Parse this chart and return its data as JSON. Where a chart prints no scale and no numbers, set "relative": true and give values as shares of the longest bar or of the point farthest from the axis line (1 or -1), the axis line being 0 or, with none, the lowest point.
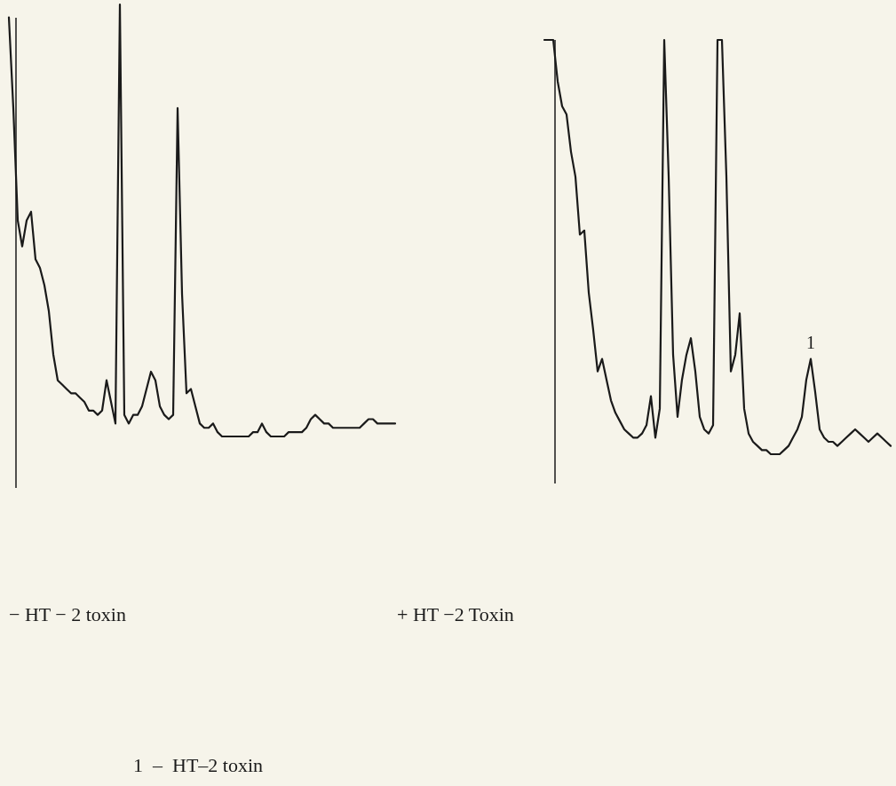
{
  "chart_data": [
    {
      "type": "line",
      "relative": true,
      "title": "− HT − 2 toxin",
      "color": "#1a1a1a",
      "categories": [
        null,
        null,
        null,
        null,
        null,
        null,
        null,
        null,
        null,
        null,
        null,
        null,
        null,
        null,
        null,
        null,
        null,
        null,
        null,
        null,
        null,
        null,
        null,
        null,
        null,
        null,
        null,
        null,
        null,
        null,
        null,
        null,
        null,
        null,
        null,
        null,
        null,
        null,
        null,
        null,
        null,
        null,
        null,
        null,
        null,
        null,
        null,
        null,
        null,
        null,
        null,
        null,
        null,
        null,
        null,
        null,
        null,
        null,
        null,
        null,
        null,
        null,
        null,
        null,
        null,
        null,
        null,
        null,
        null,
        null,
        null,
        null,
        null,
        null,
        null,
        null,
        null,
        null,
        null,
        null,
        null,
        null,
        null,
        null,
        null,
        null,
        null,
        null
      ],
      "values": [
        0.97,
        0.76,
        0.5,
        0.44,
        0.5,
        0.52,
        0.41,
        0.39,
        0.35,
        0.29,
        0.19,
        0.13,
        0.12,
        0.11,
        0.1,
        0.1,
        0.09,
        0.08,
        0.06,
        0.06,
        0.05,
        0.06,
        0.13,
        0.08,
        0.03,
        1.0,
        0.05,
        0.03,
        0.05,
        0.05,
        0.07,
        0.11,
        0.15,
        0.13,
        0.07,
        0.05,
        0.04,
        0.05,
        0.76,
        0.33,
        0.1,
        0.11,
        0.07,
        0.03,
        0.02,
        0.02,
        0.03,
        0.01,
        0.0,
        0,
        0,
        0,
        0,
        0,
        0,
        0.01,
        0.01,
        0.03,
        0.01,
        0,
        0,
        0,
        0,
        0.01,
        0.01,
        0.01,
        0.01,
        0.02,
        0.04,
        0.05,
        0.04,
        0.03,
        0.03,
        0.02,
        0.02,
        0.02,
        0.02,
        0.02,
        0.02,
        0.02,
        0.03,
        0.04,
        0.04,
        0.03,
        0.03,
        0.03,
        0.03,
        0.03
      ]
    },
    {
      "type": "line",
      "relative": true,
      "title": "+ HT −2 Toxin",
      "color": "#1a1a1a",
      "categories": [
        null,
        null,
        null,
        null,
        null,
        null,
        null,
        null,
        null,
        null,
        null,
        null,
        null,
        null,
        null,
        null,
        null,
        null,
        null,
        null,
        null,
        null,
        null,
        null,
        null,
        null,
        null,
        null,
        null,
        null,
        null,
        null,
        null,
        null,
        null,
        null,
        null,
        null,
        null,
        null,
        null,
        null,
        null,
        null,
        null,
        null,
        null,
        null,
        null,
        null,
        null,
        null,
        null,
        null,
        null,
        null,
        null,
        null,
        null,
        null,
        null,
        null,
        null,
        null,
        null,
        null,
        null,
        null,
        null,
        null,
        null,
        null,
        null,
        null,
        null,
        null,
        null,
        null,
        null
      ],
      "values": [
        1.0,
        1.0,
        1.0,
        0.9,
        0.84,
        0.82,
        0.73,
        0.67,
        0.53,
        0.54,
        0.39,
        0.3,
        0.2,
        0.23,
        0.18,
        0.13,
        0.1,
        0.08,
        0.06,
        0.05,
        0.04,
        0.04,
        0.05,
        0.07,
        0.14,
        0.04,
        0.11,
        1.0,
        0.67,
        0.24,
        0.09,
        0.18,
        0.24,
        0.28,
        0.2,
        0.09,
        0.06,
        0.05,
        0.07,
        1.0,
        1.0,
        0.67,
        0.2,
        0.24,
        0.34,
        0.11,
        0.05,
        0.03,
        0.02,
        0.01,
        0.01,
        0,
        0,
        0,
        0.01,
        0.02,
        0.04,
        0.06,
        0.09,
        0.18,
        0.23,
        0.15,
        0.06,
        0.04,
        0.03,
        0.03,
        0.02,
        0.03,
        0.04,
        0.05,
        0.06,
        0.05,
        0.04,
        0.03,
        0.04,
        0.05,
        0.04,
        0.03,
        0.02
      ],
      "annotations": [
        {
          "text": "1",
          "y": 0.23
        },
        "1  –  HT–2 toxin"
      ]
    }
  ]
}
